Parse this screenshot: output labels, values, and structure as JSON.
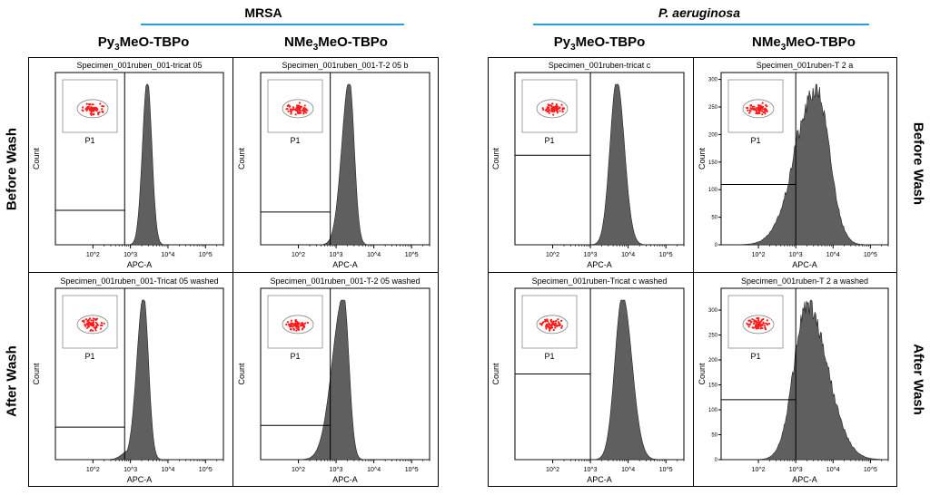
{
  "groups": [
    {
      "title": "MRSA",
      "italic": false
    },
    {
      "title": "P. aeruginosa",
      "italic": true
    }
  ],
  "column_headers": [
    {
      "main": "Py",
      "sub": "3",
      "rest": "MeO-TBPo"
    },
    {
      "main": "NMe",
      "sub": "3",
      "rest": "MeO-TBPo"
    },
    {
      "main": "Py",
      "sub": "3",
      "rest": "MeO-TBPo"
    },
    {
      "main": "NMe",
      "sub": "3",
      "rest": "MeO-TBPo"
    }
  ],
  "row_labels": {
    "left": [
      "Before Wash",
      "After Wash"
    ],
    "right": [
      "Before Wash",
      "After Wash"
    ]
  },
  "colors": {
    "histogram_fill": "#5f5f5f",
    "gate_points": "#ff1a1a",
    "rule": "#2f9fd6"
  },
  "chart_data": [
    {
      "type": "histogram",
      "title": "Specimen_001ruben_001-tricat 05",
      "xlabel": "APC-A",
      "ylabel": "Count",
      "inset_label": "P1",
      "x_scale": "log",
      "xlim": [
        10,
        300000
      ],
      "xticks": [
        "10^2",
        "10^3",
        "10^4",
        "10^5"
      ],
      "yticks": [],
      "gate_x": 700,
      "gate_level": 0.2,
      "peak_mode": 3.45,
      "peak_width": 0.13,
      "peak_width_right": 0.12,
      "jagged": false,
      "secondary": null
    },
    {
      "type": "histogram",
      "title": "Specimen_001ruben_001-T-2 05 b",
      "xlabel": "APC-A",
      "ylabel": "Count",
      "inset_label": "P1",
      "x_scale": "log",
      "xlim": [
        10,
        300000
      ],
      "xticks": [
        "10^2",
        "10^3",
        "10^4",
        "10^5"
      ],
      "yticks": [],
      "gate_x": 700,
      "gate_level": 0.19,
      "peak_mode": 3.35,
      "peak_width": 0.2,
      "peak_width_right": 0.13,
      "jagged": false,
      "secondary": null
    },
    {
      "type": "histogram",
      "title": "Specimen_001ruben-tricat c",
      "xlabel": "APC-A",
      "ylabel": "Count",
      "inset_label": "P1",
      "x_scale": "log",
      "xlim": [
        10,
        300000
      ],
      "xticks": [
        "10^2",
        "10^3",
        "10^4",
        "10^5"
      ],
      "yticks": [],
      "gate_x": 1000,
      "gate_level": 0.52,
      "peak_mode": 3.7,
      "peak_width": 0.18,
      "peak_width_right": 0.2,
      "jagged": false,
      "secondary": null
    },
    {
      "type": "histogram",
      "title": "Specimen_001ruben-T 2 a",
      "xlabel": "APC-A",
      "ylabel": "Count",
      "inset_label": "P1",
      "x_scale": "log",
      "xlim": [
        10,
        300000
      ],
      "xticks": [
        "10^2",
        "10^3",
        "10^4",
        "10^5"
      ],
      "yticks": [
        "0",
        "50",
        "100",
        "150",
        "200",
        "250",
        "300"
      ],
      "ymax": 300,
      "gate_x": 1000,
      "gate_level": 0.35,
      "peak_mode": 3.55,
      "peak_width": 0.55,
      "peak_width_right": 0.35,
      "jagged": true,
      "secondary": {
        "mode": 3.1,
        "height": 0.72,
        "width": 0.25
      }
    },
    {
      "type": "histogram",
      "title": "Specimen_001ruben_001-Tricat 05 washed",
      "xlabel": "APC-A",
      "ylabel": "Count",
      "inset_label": "P1",
      "x_scale": "log",
      "xlim": [
        10,
        300000
      ],
      "xticks": [
        "10^2",
        "10^3",
        "10^4",
        "10^5"
      ],
      "yticks": [],
      "gate_x": 700,
      "gate_level": 0.19,
      "peak_mode": 3.35,
      "peak_width": 0.18,
      "peak_width_right": 0.13,
      "jagged": false,
      "secondary": {
        "mode": 3.0,
        "height": 0.06,
        "width": 0.2
      }
    },
    {
      "type": "histogram",
      "title": "Specimen_001ruben_001-T-2 05 washed",
      "xlabel": "APC-A",
      "ylabel": "Count",
      "inset_label": "P1",
      "x_scale": "log",
      "xlim": [
        10,
        300000
      ],
      "xticks": [
        "10^2",
        "10^3",
        "10^4",
        "10^5"
      ],
      "yticks": [],
      "gate_x": 700,
      "gate_level": 0.2,
      "peak_mode": 3.2,
      "peak_width": 0.3,
      "peak_width_right": 0.14,
      "jagged": false,
      "secondary": null
    },
    {
      "type": "histogram",
      "title": "Specimen_001ruben-Tricat c washed",
      "xlabel": "APC-A",
      "ylabel": "Count",
      "inset_label": "P1",
      "x_scale": "log",
      "xlim": [
        10,
        300000
      ],
      "xticks": [
        "10^2",
        "10^3",
        "10^4",
        "10^5"
      ],
      "yticks": [],
      "gate_x": 1000,
      "gate_level": 0.5,
      "peak_mode": 3.85,
      "peak_width": 0.2,
      "peak_width_right": 0.25,
      "jagged": false,
      "secondary": null
    },
    {
      "type": "histogram",
      "title": "Specimen_001ruben-T 2 a washed",
      "xlabel": "APC-A",
      "ylabel": "Count",
      "inset_label": "P1",
      "x_scale": "log",
      "xlim": [
        10,
        300000
      ],
      "xticks": [
        "10^2",
        "10^3",
        "10^4",
        "10^5"
      ],
      "yticks": [
        "0",
        "50",
        "100",
        "150",
        "200",
        "250",
        "300"
      ],
      "ymax": 330,
      "gate_x": 1000,
      "gate_level": 0.35,
      "peak_mode": 3.3,
      "peak_width": 0.35,
      "peak_width_right": 0.55,
      "jagged": true,
      "secondary": null
    }
  ]
}
